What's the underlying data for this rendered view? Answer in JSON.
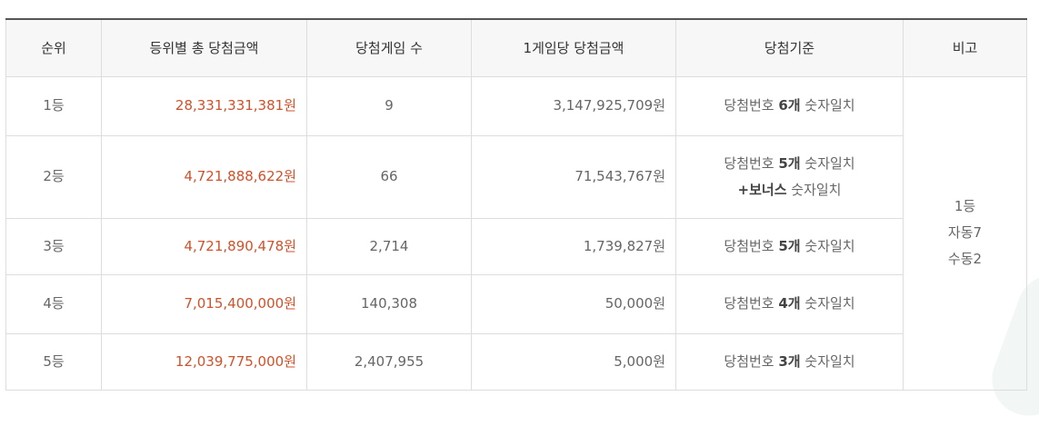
{
  "headers": [
    "순위",
    "등위별 총 당첨금액",
    "당첨게임 수",
    "1게임당 당첨금액",
    "당첨기준",
    "비고"
  ],
  "rows": [
    {
      "rank": "1등",
      "total": "28,331,331,381원",
      "games": "9",
      "per_game": "3,147,925,709원",
      "criteria_prefix": "당첨번호 ",
      "criteria_bold": "6개",
      "criteria_suffix": " 숫자일치"
    },
    {
      "rank": "2등",
      "total": "4,721,888,622원",
      "games": "66",
      "per_game": "71,543,767원",
      "criteria_prefix": "당첨번호 ",
      "criteria_bold": "5개",
      "criteria_suffix": " 숫자일치",
      "bonus_bold": "+보너스",
      "bonus_suffix": " 숫자일치"
    },
    {
      "rank": "3등",
      "total": "4,721,890,478원",
      "games": "2,714",
      "per_game": "1,739,827원",
      "criteria_prefix": "당첨번호 ",
      "criteria_bold": "5개",
      "criteria_suffix": " 숫자일치"
    },
    {
      "rank": "4등",
      "total": "7,015,400,000원",
      "games": "140,308",
      "per_game": "50,000원",
      "criteria_prefix": "당첨번호 ",
      "criteria_bold": "4개",
      "criteria_suffix": " 숫자일치"
    },
    {
      "rank": "5등",
      "total": "12,039,775,000원",
      "games": "2,407,955",
      "per_game": "5,000원",
      "criteria_prefix": "당첨번호 ",
      "criteria_bold": "3개",
      "criteria_suffix": " 숫자일치"
    }
  ],
  "remarks": [
    "1등",
    "자동7",
    "수동2"
  ],
  "colors": {
    "amount": "#d0512a",
    "header_bg": "#f7f7f7",
    "top_border": "#555555",
    "grid": "#dddddd"
  }
}
